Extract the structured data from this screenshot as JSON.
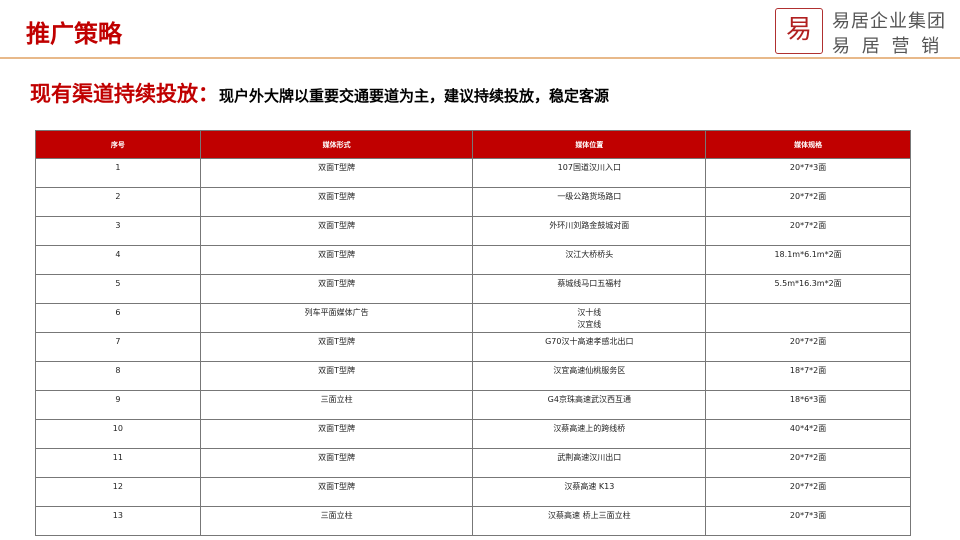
{
  "header": {
    "title": "推广策略",
    "logo_text": "易居",
    "brand_line1": "易居企业集团",
    "brand_line2": "易 居 营 销"
  },
  "subtitle": {
    "highlight": "现有渠道持续投放：",
    "text": "现户外大牌以重要交通要道为主，建议持续投放，稳定客源"
  },
  "table": {
    "columns": [
      "序号",
      "媒体形式",
      "媒体位置",
      "媒体规格"
    ],
    "rows": [
      [
        "1",
        "双面T型牌",
        "107国道汉川入口",
        "20*7*3面"
      ],
      [
        "2",
        "双面T型牌",
        "一级公路货场路口",
        "20*7*2面"
      ],
      [
        "3",
        "双面T型牌",
        "外环川刘路金鼓城对面",
        "20*7*2面"
      ],
      [
        "4",
        "双面T型牌",
        "汉江大桥桥头",
        "18.1m*6.1m*2面"
      ],
      [
        "5",
        "双面T型牌",
        "蔡城线马口五福村",
        "5.5m*16.3m*2面"
      ],
      [
        "6",
        "列车平面媒体广告",
        "汉十线\n汉宜线",
        ""
      ],
      [
        "7",
        "双面T型牌",
        "G70汉十高速孝感北出口",
        "20*7*2面"
      ],
      [
        "8",
        "双面T型牌",
        "汉宜高速仙桃服务区",
        "18*7*2面"
      ],
      [
        "9",
        "三面立柱",
        "G4京珠高速武汉西互通",
        "18*6*3面"
      ],
      [
        "10",
        "双面T型牌",
        "汉蔡高速上的跨线桥",
        "40*4*2面"
      ],
      [
        "11",
        "双面T型牌",
        "武荆高速汉川出口",
        "20*7*2面"
      ],
      [
        "12",
        "双面T型牌",
        "汉蔡高速 K13",
        "20*7*2面"
      ],
      [
        "13",
        "三面立柱",
        "汉蔡高速 桥上三面立柱",
        "20*7*3面"
      ]
    ]
  },
  "colors": {
    "accent": "#c00000",
    "rule": "#e8b98a"
  }
}
